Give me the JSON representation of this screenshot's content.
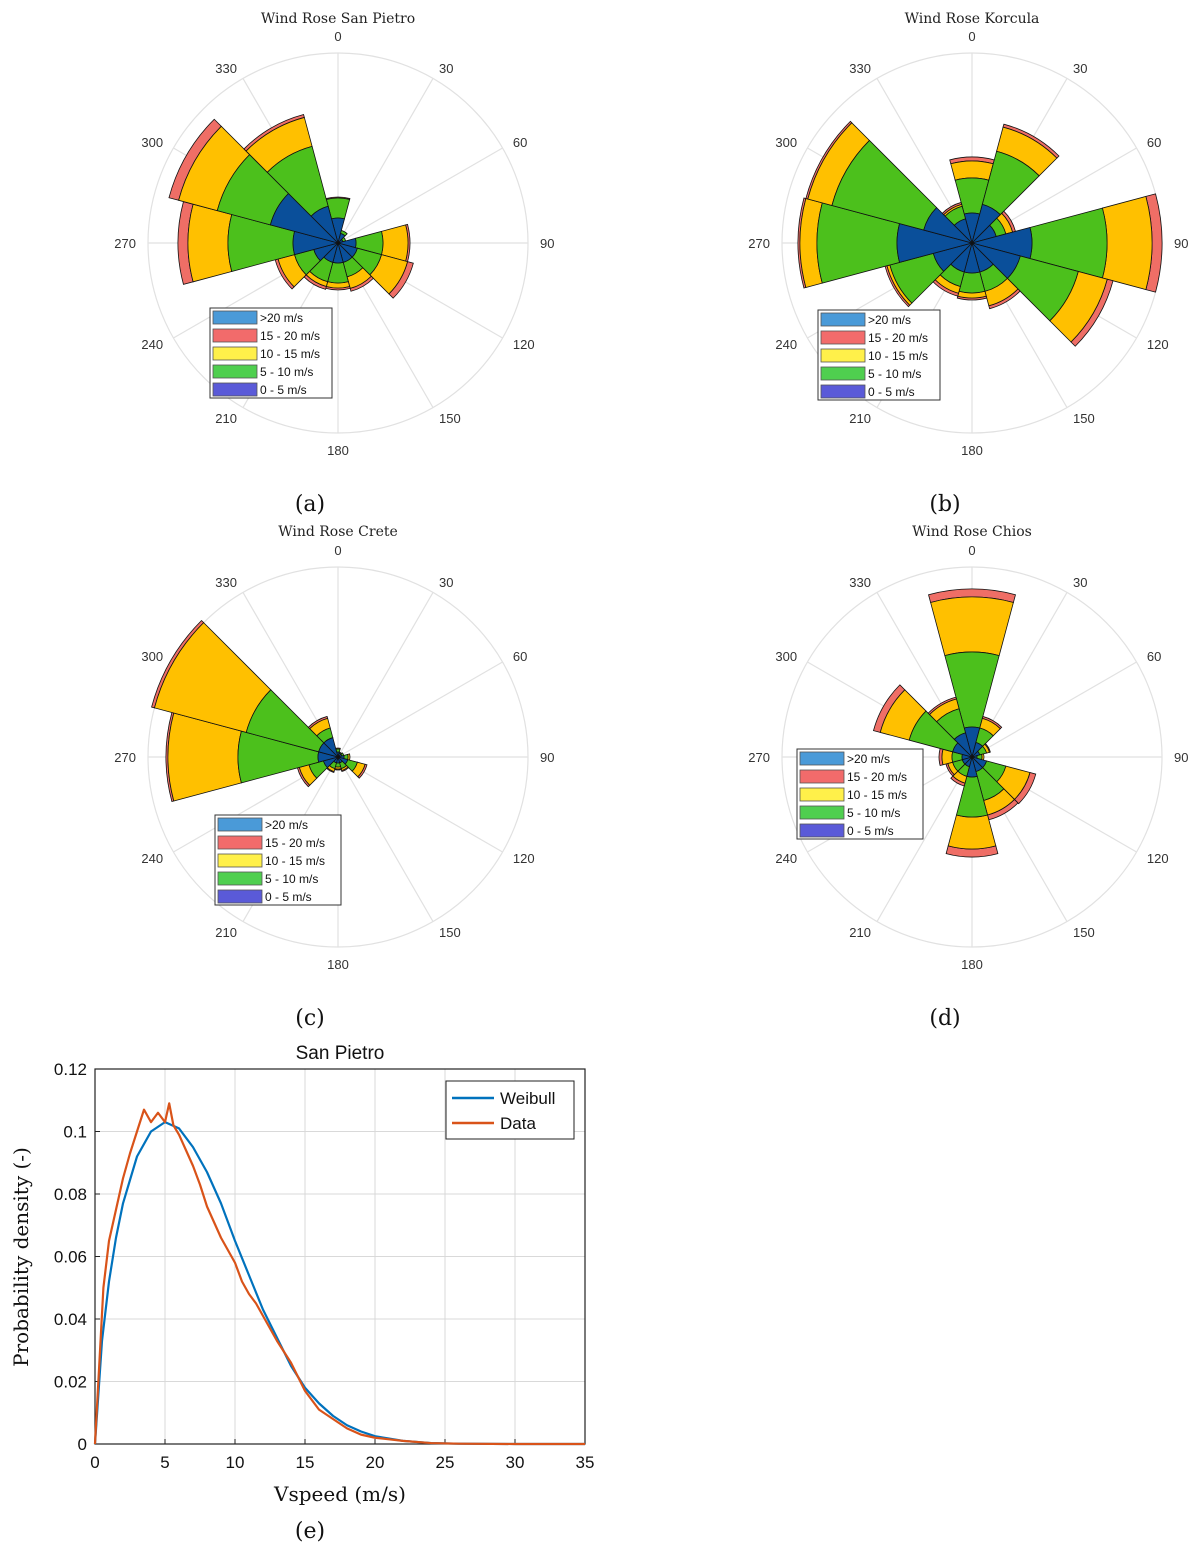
{
  "colors": {
    "bin_0_5": "#0a4f9a",
    "bin_5_10": "#4cc01c",
    "bin_10_15": "#ffc000",
    "bin_15_20": "#ef6e66",
    "bin_gt20": "#4a8fd0",
    "legend_0_5": "#5a5ad8",
    "legend_5_10": "#4fcf4f",
    "legend_10_15": "#fff04a",
    "legend_15_20": "#f26b6b",
    "legend_gt20": "#4a9ad8",
    "weibull": "#0072bd",
    "data": "#d95319",
    "grid": "#e1e1e1"
  },
  "chart_data": [
    {
      "type": "polar-bar",
      "title": "Wind Rose San Pietro",
      "panel_label": "(a)",
      "angles": [
        0,
        30,
        60,
        90,
        120,
        150,
        180,
        210,
        240,
        270,
        300,
        330
      ],
      "angle_labels": [
        "0",
        "30",
        "60",
        "90",
        "120",
        "150",
        "180",
        "210",
        "240",
        "270",
        "300",
        "330"
      ],
      "r_max": 190,
      "legend_position": "lower-left",
      "legend": [
        ">20 m/s",
        "15 - 20 m/s",
        "10 - 15 m/s",
        "5 - 10 m/s",
        "0 - 5 m/s"
      ],
      "sectors": [
        {
          "dir": 0,
          "cum": [
            25,
            45,
            45,
            46,
            46
          ]
        },
        {
          "dir": 30,
          "cum": [
            10,
            13,
            13,
            13,
            13
          ]
        },
        {
          "dir": 60,
          "cum": [
            5,
            8,
            8,
            8,
            8
          ]
        },
        {
          "dir": 90,
          "cum": [
            18,
            45,
            70,
            72,
            72
          ]
        },
        {
          "dir": 120,
          "cum": [
            20,
            45,
            72,
            78,
            78
          ]
        },
        {
          "dir": 150,
          "cum": [
            20,
            35,
            47,
            50,
            50
          ]
        },
        {
          "dir": 180,
          "cum": [
            20,
            40,
            45,
            47,
            47
          ]
        },
        {
          "dir": 210,
          "cum": [
            20,
            40,
            45,
            48,
            48
          ]
        },
        {
          "dir": 240,
          "cum": [
            25,
            45,
            62,
            65,
            65
          ]
        },
        {
          "dir": 270,
          "cum": [
            45,
            110,
            150,
            160,
            160
          ]
        },
        {
          "dir": 300,
          "cum": [
            70,
            125,
            165,
            175,
            175
          ]
        },
        {
          "dir": 330,
          "cum": [
            38,
            100,
            130,
            133,
            133
          ]
        }
      ]
    },
    {
      "type": "polar-bar",
      "title": "Wind Rose Korcula",
      "panel_label": "(b)",
      "angles": [
        0,
        30,
        60,
        90,
        120,
        150,
        180,
        210,
        240,
        270,
        300,
        330
      ],
      "angle_labels": [
        "0",
        "30",
        "60",
        "90",
        "120",
        "150",
        "180",
        "210",
        "240",
        "270",
        "300",
        "330"
      ],
      "r_max": 190,
      "legend_position": "lower-left",
      "legend": [
        ">20 m/s",
        "15 - 20 m/s",
        "10 - 15 m/s",
        "5 - 10 m/s",
        "0 - 5 m/s"
      ],
      "sectors": [
        {
          "dir": 0,
          "cum": [
            30,
            65,
            82,
            86,
            86
          ]
        },
        {
          "dir": 30,
          "cum": [
            40,
            95,
            120,
            123,
            123
          ]
        },
        {
          "dir": 60,
          "cum": [
            25,
            35,
            42,
            45,
            45
          ]
        },
        {
          "dir": 90,
          "cum": [
            60,
            135,
            180,
            190,
            190
          ]
        },
        {
          "dir": 120,
          "cum": [
            50,
            110,
            140,
            146,
            146
          ]
        },
        {
          "dir": 150,
          "cum": [
            30,
            50,
            65,
            68,
            68
          ]
        },
        {
          "dir": 180,
          "cum": [
            30,
            50,
            55,
            57,
            57
          ]
        },
        {
          "dir": 210,
          "cum": [
            30,
            45,
            52,
            55,
            55
          ]
        },
        {
          "dir": 240,
          "cum": [
            40,
            85,
            88,
            90,
            90
          ]
        },
        {
          "dir": 270,
          "cum": [
            75,
            155,
            172,
            174,
            174
          ]
        },
        {
          "dir": 300,
          "cum": [
            50,
            145,
            170,
            172,
            172
          ]
        },
        {
          "dir": 330,
          "cum": [
            25,
            38,
            40,
            42,
            42
          ]
        }
      ]
    },
    {
      "type": "polar-bar",
      "title": "Wind Rose Crete",
      "panel_label": "(c)",
      "angles": [
        0,
        30,
        60,
        90,
        120,
        150,
        180,
        210,
        240,
        270,
        300,
        330
      ],
      "angle_labels": [
        "0",
        "30",
        "60",
        "90",
        "120",
        "150",
        "180",
        "210",
        "240",
        "270",
        "300",
        "330"
      ],
      "r_max": 190,
      "legend_position": "lower-left",
      "legend": [
        ">20 m/s",
        "15 - 20 m/s",
        "10 - 15 m/s",
        "5 - 10 m/s",
        "0 - 5 m/s"
      ],
      "sectors": [
        {
          "dir": 0,
          "cum": [
            5,
            8,
            9,
            9,
            9
          ]
        },
        {
          "dir": 30,
          "cum": [
            4,
            5,
            5,
            5,
            5
          ]
        },
        {
          "dir": 60,
          "cum": [
            4,
            6,
            6,
            6,
            6
          ]
        },
        {
          "dir": 90,
          "cum": [
            6,
            10,
            12,
            12,
            12
          ]
        },
        {
          "dir": 120,
          "cum": [
            10,
            20,
            28,
            30,
            30
          ]
        },
        {
          "dir": 150,
          "cum": [
            6,
            12,
            14,
            15,
            15
          ]
        },
        {
          "dir": 180,
          "cum": [
            6,
            10,
            12,
            13,
            13
          ]
        },
        {
          "dir": 210,
          "cum": [
            6,
            12,
            15,
            16,
            16
          ]
        },
        {
          "dir": 240,
          "cum": [
            15,
            30,
            40,
            42,
            42
          ]
        },
        {
          "dir": 270,
          "cum": [
            20,
            100,
            170,
            172,
            172
          ]
        },
        {
          "dir": 300,
          "cum": [
            20,
            95,
            190,
            193,
            193
          ]
        },
        {
          "dir": 330,
          "cum": [
            20,
            30,
            40,
            42,
            42
          ]
        }
      ]
    },
    {
      "type": "polar-bar",
      "title": "Wind Rose Chios",
      "panel_label": "(d)",
      "angles": [
        0,
        30,
        60,
        90,
        120,
        150,
        180,
        210,
        240,
        270,
        300,
        330
      ],
      "angle_labels": [
        "0",
        "30",
        "60",
        "90",
        "120",
        "150",
        "180",
        "210",
        "240",
        "270",
        "300",
        "330"
      ],
      "r_max": 190,
      "legend_position": "lower-left",
      "legend": [
        ">20 m/s",
        "15 - 20 m/s",
        "10 - 15 m/s",
        "5 - 10 m/s",
        "0 - 5 m/s"
      ],
      "sectors": [
        {
          "dir": 0,
          "cum": [
            30,
            105,
            160,
            168,
            168
          ]
        },
        {
          "dir": 30,
          "cum": [
            15,
            30,
            40,
            42,
            42
          ]
        },
        {
          "dir": 60,
          "cum": [
            8,
            15,
            18,
            19,
            19
          ]
        },
        {
          "dir": 90,
          "cum": [
            5,
            10,
            12,
            12,
            12
          ]
        },
        {
          "dir": 120,
          "cum": [
            15,
            35,
            60,
            66,
            66
          ]
        },
        {
          "dir": 150,
          "cum": [
            15,
            45,
            60,
            65,
            65
          ]
        },
        {
          "dir": 180,
          "cum": [
            20,
            60,
            92,
            100,
            100
          ]
        },
        {
          "dir": 210,
          "cum": [
            10,
            20,
            27,
            30,
            30
          ]
        },
        {
          "dir": 240,
          "cum": [
            10,
            20,
            25,
            27,
            27
          ]
        },
        {
          "dir": 270,
          "cum": [
            10,
            20,
            30,
            33,
            33
          ]
        },
        {
          "dir": 300,
          "cum": [
            20,
            65,
            95,
            102,
            102
          ]
        },
        {
          "dir": 330,
          "cum": [
            25,
            50,
            60,
            62,
            62
          ]
        }
      ]
    },
    {
      "type": "line",
      "title": "San Pietro",
      "panel_label": "(e)",
      "xlabel": "Vspeed (m/s)",
      "ylabel": "Probability density (-)",
      "xlim": [
        0,
        35
      ],
      "ylim": [
        0,
        0.12
      ],
      "xticks": [
        "0",
        "5",
        "10",
        "15",
        "20",
        "25",
        "30",
        "35"
      ],
      "yticks": [
        "0",
        "0.02",
        "0.04",
        "0.06",
        "0.08",
        "0.1",
        "0.12"
      ],
      "grid": true,
      "legend_position": "top-right",
      "series": [
        {
          "name": "Weibull",
          "x": [
            0,
            0.5,
            1,
            1.5,
            2,
            3,
            4,
            5,
            6,
            7,
            8,
            9,
            10,
            11,
            12,
            13,
            14,
            15,
            16,
            17,
            18,
            19,
            20,
            22,
            24,
            26,
            30,
            35
          ],
          "y": [
            0,
            0.033,
            0.052,
            0.066,
            0.077,
            0.092,
            0.1,
            0.103,
            0.101,
            0.095,
            0.087,
            0.077,
            0.065,
            0.054,
            0.043,
            0.034,
            0.025,
            0.018,
            0.013,
            0.009,
            0.006,
            0.004,
            0.0025,
            0.001,
            0.0003,
            0.0001,
            0,
            0
          ]
        },
        {
          "name": "Data",
          "x": [
            0,
            0.3,
            0.6,
            1,
            1.5,
            2,
            2.5,
            3,
            3.5,
            4,
            4.5,
            5,
            5.3,
            5.6,
            6,
            6.5,
            7,
            7.5,
            8,
            8.5,
            9,
            9.5,
            10,
            10.5,
            11,
            11.5,
            12,
            13,
            14,
            15,
            16,
            17,
            18,
            19,
            20,
            21,
            22,
            24,
            26,
            30,
            35
          ],
          "y": [
            0,
            0.025,
            0.05,
            0.065,
            0.075,
            0.085,
            0.093,
            0.1,
            0.107,
            0.103,
            0.106,
            0.103,
            0.109,
            0.102,
            0.099,
            0.094,
            0.089,
            0.083,
            0.076,
            0.071,
            0.066,
            0.062,
            0.058,
            0.052,
            0.048,
            0.045,
            0.041,
            0.033,
            0.026,
            0.017,
            0.011,
            0.008,
            0.005,
            0.003,
            0.002,
            0.0015,
            0.001,
            0.0003,
            0.0001,
            0,
            0
          ]
        }
      ]
    }
  ]
}
